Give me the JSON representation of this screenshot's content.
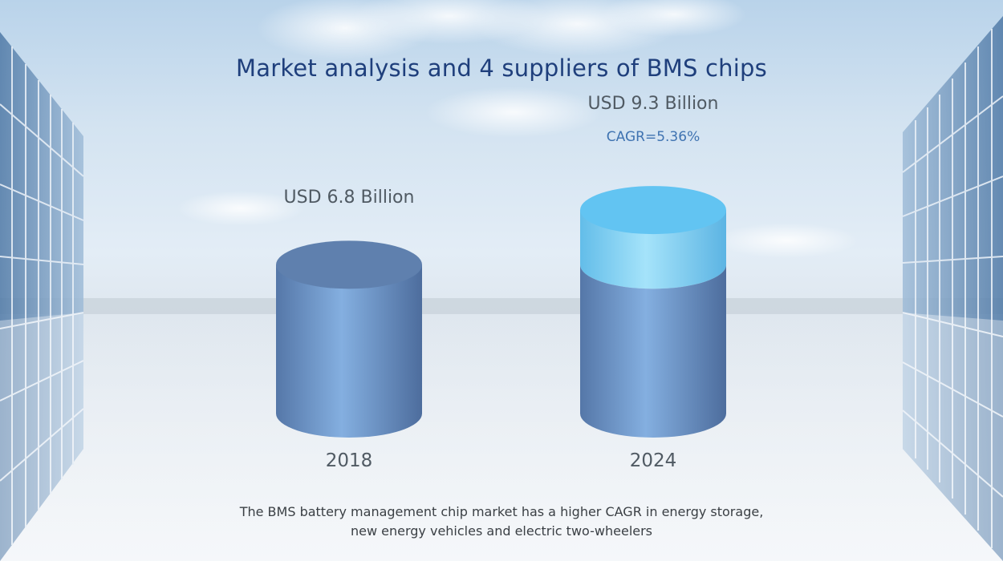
{
  "title": "Market analysis and 4 suppliers of BMS chips",
  "chart_data": {
    "type": "bar",
    "categories": [
      "2018",
      "2024"
    ],
    "values": [
      6.8,
      9.3
    ],
    "value_labels": [
      "USD 6.8 Billion",
      "USD 9.3 Billion"
    ],
    "annotation": "CAGR=5.36%",
    "title": "Market analysis and 4 suppliers of BMS chips",
    "xlabel": "",
    "ylabel": "",
    "ylim": [
      0,
      10
    ],
    "grid": false,
    "colors": {
      "base_bar": "#6f98c8",
      "growth_segment": "#7fd2f6",
      "highlight_text": "#3f73b1"
    }
  },
  "caption": {
    "line1": "The BMS battery management chip market has a higher CAGR in energy storage,",
    "line2": "new energy vehicles and electric two-wheelers"
  }
}
